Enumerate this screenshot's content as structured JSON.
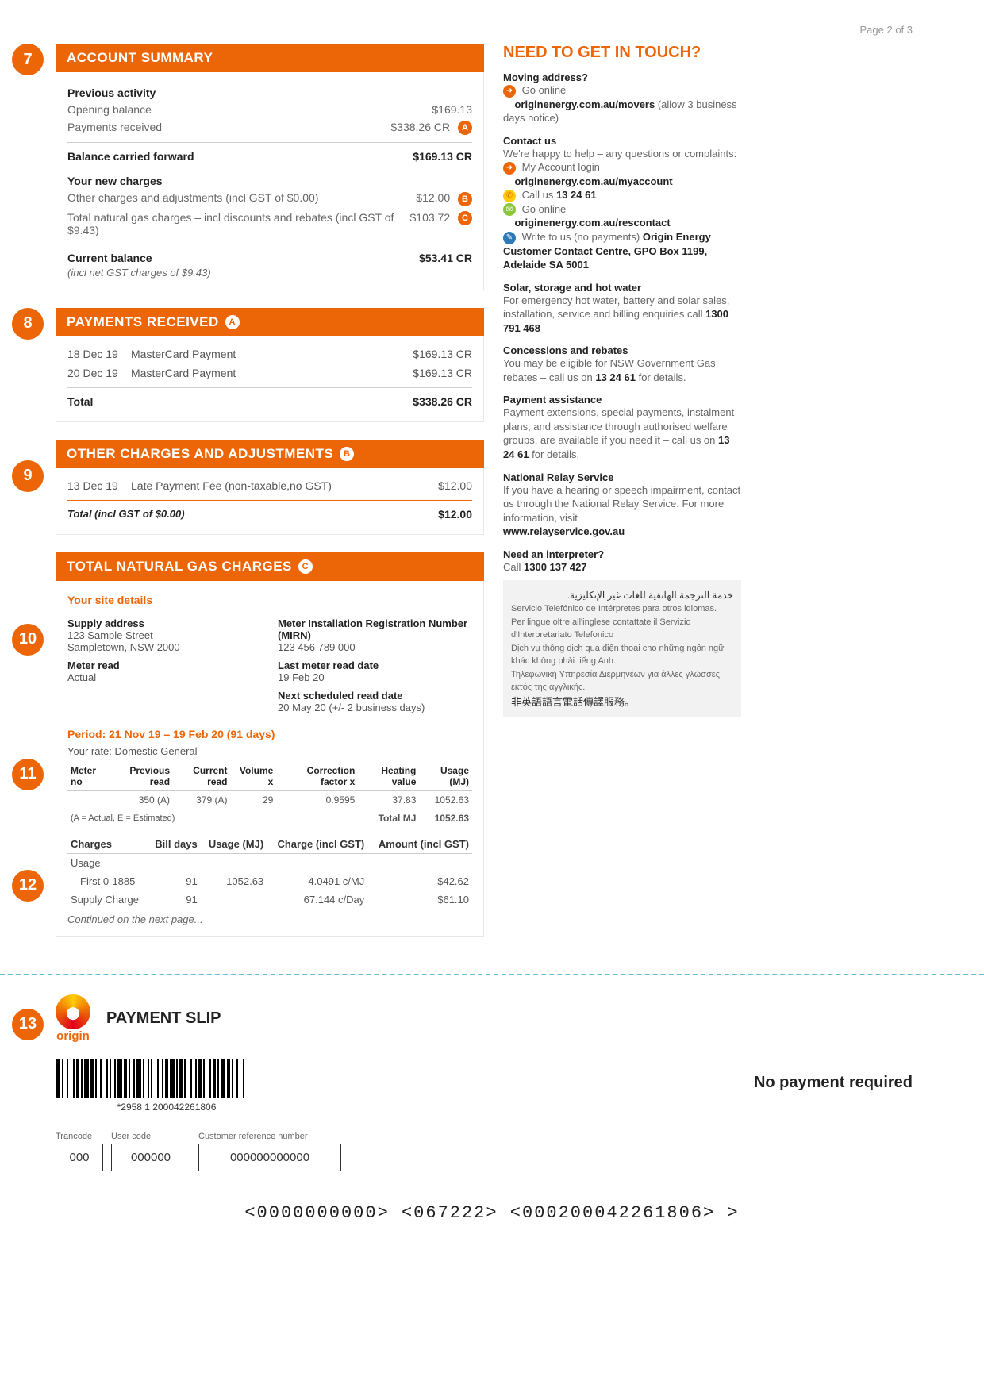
{
  "colors": {
    "brand_orange": "#ec6607",
    "cutline_blue": "#5fbcd3",
    "text_body": "#666666",
    "text_strong": "#222222",
    "background": "#ffffff",
    "border_light": "#e6e6e6"
  },
  "page_number": "Page 2 of 3",
  "badges": {
    "b7": "7",
    "b8": "8",
    "b9": "9",
    "b10": "10",
    "b11": "11",
    "b12": "12",
    "b13": "13"
  },
  "account_summary": {
    "title": "ACCOUNT SUMMARY",
    "previous_activity_label": "Previous activity",
    "opening_balance_label": "Opening balance",
    "opening_balance_value": "$169.13",
    "payments_received_label": "Payments received",
    "payments_received_value": "$338.26 CR",
    "payments_received_marker": "A",
    "balance_forward_label": "Balance carried forward",
    "balance_forward_value": "$169.13 CR",
    "new_charges_label": "Your new charges",
    "other_charges_label": "Other charges and adjustments (incl GST of $0.00)",
    "other_charges_value": "$12.00",
    "other_charges_marker": "B",
    "gas_charges_label": "Total natural gas charges – incl discounts and rebates (incl GST of $9.43)",
    "gas_charges_value": "$103.72",
    "gas_charges_marker": "C",
    "current_balance_label": "Current balance",
    "current_balance_value": "$53.41 CR",
    "current_balance_note": "(incl net GST charges of $9.43)"
  },
  "payments_received": {
    "title": "PAYMENTS RECEIVED",
    "header_marker": "A",
    "rows": [
      {
        "date": "18 Dec 19",
        "desc": "MasterCard Payment",
        "amount": "$169.13 CR"
      },
      {
        "date": "20 Dec 19",
        "desc": "MasterCard Payment",
        "amount": "$169.13 CR"
      }
    ],
    "total_label": "Total",
    "total_value": "$338.26 CR"
  },
  "other_charges": {
    "title": "OTHER CHARGES AND ADJUSTMENTS",
    "header_marker": "B",
    "rows": [
      {
        "date": "13 Dec 19",
        "desc": "Late Payment Fee (non-taxable,no GST)",
        "amount": "$12.00"
      }
    ],
    "total_label": "Total (incl GST of $0.00)",
    "total_value": "$12.00"
  },
  "gas_charges_section": {
    "title": "TOTAL NATURAL GAS CHARGES",
    "header_marker": "C",
    "site_details_label": "Your site details",
    "supply_address_label": "Supply address",
    "supply_address_line1": "123 Sample Street",
    "supply_address_line2": "Sampletown, NSW 2000",
    "meter_read_label": "Meter read",
    "meter_read_value": "Actual",
    "mirn_label": "Meter Installation Registration Number (MIRN)",
    "mirn_value": "123 456 789 000",
    "last_read_label": "Last meter read date",
    "last_read_value": "19 Feb 20",
    "next_read_label": "Next scheduled read date",
    "next_read_value": "20 May 20 (+/- 2 business days)",
    "period_label": "Period: 21 Nov 19 – 19 Feb 20 (91 days)",
    "rate_label": "Your rate: Domestic General",
    "meter_table": {
      "headers": [
        "Meter no",
        "Previous read",
        "Current read",
        "Volume x",
        "Correction factor x",
        "Heating value",
        "Usage (MJ)"
      ],
      "row": [
        "",
        "350 (A)",
        "379 (A)",
        "29",
        "0.9595",
        "37.83",
        "1052.63"
      ],
      "legend": "(A = Actual, E = Estimated)",
      "total_label": "Total MJ",
      "total_value": "1052.63"
    },
    "charges_table": {
      "headers": [
        "Charges",
        "Bill days",
        "Usage (MJ)",
        "Charge (incl GST)",
        "Amount (incl GST)"
      ],
      "usage_section_label": "Usage",
      "rows": [
        {
          "c0": "   First 0-1885",
          "c1": "91",
          "c2": "1052.63",
          "c3": "4.0491 c/MJ",
          "c4": "$42.62"
        },
        {
          "c0": "Supply Charge",
          "c1": "91",
          "c2": "",
          "c3": "67.144 c/Day",
          "c4": "$61.10"
        }
      ],
      "continued": "Continued on the next page..."
    }
  },
  "right": {
    "title": "NEED TO GET IN TOUCH?",
    "moving_label": "Moving address?",
    "moving_go_online": "Go online",
    "moving_url": "originenergy.com.au/movers",
    "moving_note": " (allow 3 business days notice)",
    "contact_label": "Contact us",
    "contact_intro": "We're happy to help – any questions or complaints:",
    "myaccount_label": "My Account login",
    "myaccount_url": "originenergy.com.au/myaccount",
    "call_label": "Call us ",
    "call_number": "13 24 61",
    "go_online_label": "Go online",
    "go_online_url": "originenergy.com.au/rescontact",
    "write_label": "Write to us (no payments) ",
    "write_address": "Origin Energy Customer Contact Centre, GPO Box 1199, Adelaide SA 5001",
    "solar_label": "Solar, storage and hot water",
    "solar_body": "For emergency hot water, battery and solar sales, installation, service and billing enquiries call ",
    "solar_number": "1300 791 468",
    "concessions_label": "Concessions and rebates",
    "concessions_body1": "You may be eligible for NSW Government Gas rebates – call us on ",
    "concessions_number": "13 24 61",
    "concessions_body2": " for details.",
    "assist_label": "Payment assistance",
    "assist_body1": "Payment extensions, special payments, instalment plans, and assistance through authorised welfare groups, are available if you need it – call us on ",
    "assist_number": "13 24 61",
    "assist_body2": " for details.",
    "relay_label": "National Relay Service",
    "relay_body": "If you have a hearing or speech impairment, contact us through the National Relay Service. For more information, visit",
    "relay_url": "www.relayservice.gov.au",
    "interp_label": "Need an interpreter?",
    "interp_call": "Call ",
    "interp_number": "1300 137 427",
    "interp_lines": {
      "ar": "خدمة الترجمة الهاتفية للغات غير الإنكليزية.",
      "es": "Servicio Telefónico de Intérpretes para otros idiomas.",
      "it": "Per lingue oltre all'inglese contattate il Servizio d'Interpretariato Telefonico",
      "vi": "Dịch vụ thông dịch qua điện thoại cho những ngôn ngữ khác không phải tiếng Anh.",
      "el": "Τηλεφωνική Υπηρεσία Διερμηνέων για άλλες γλώσσες εκτός της αγγλικής.",
      "zh": "非英語語言電話傳譯服務。"
    }
  },
  "slip": {
    "logo_text": "origin",
    "title": "PAYMENT SLIP",
    "no_payment": "No payment required",
    "barcode_text": "*2958 1 200042261806",
    "trancode_label": "Trancode",
    "trancode_value": "000",
    "usercode_label": "User code",
    "usercode_value": "000000",
    "crn_label": "Customer reference number",
    "crn_value": "000000000000",
    "micr": "<0000000000>    <067222>    <000200042261806>    >"
  }
}
